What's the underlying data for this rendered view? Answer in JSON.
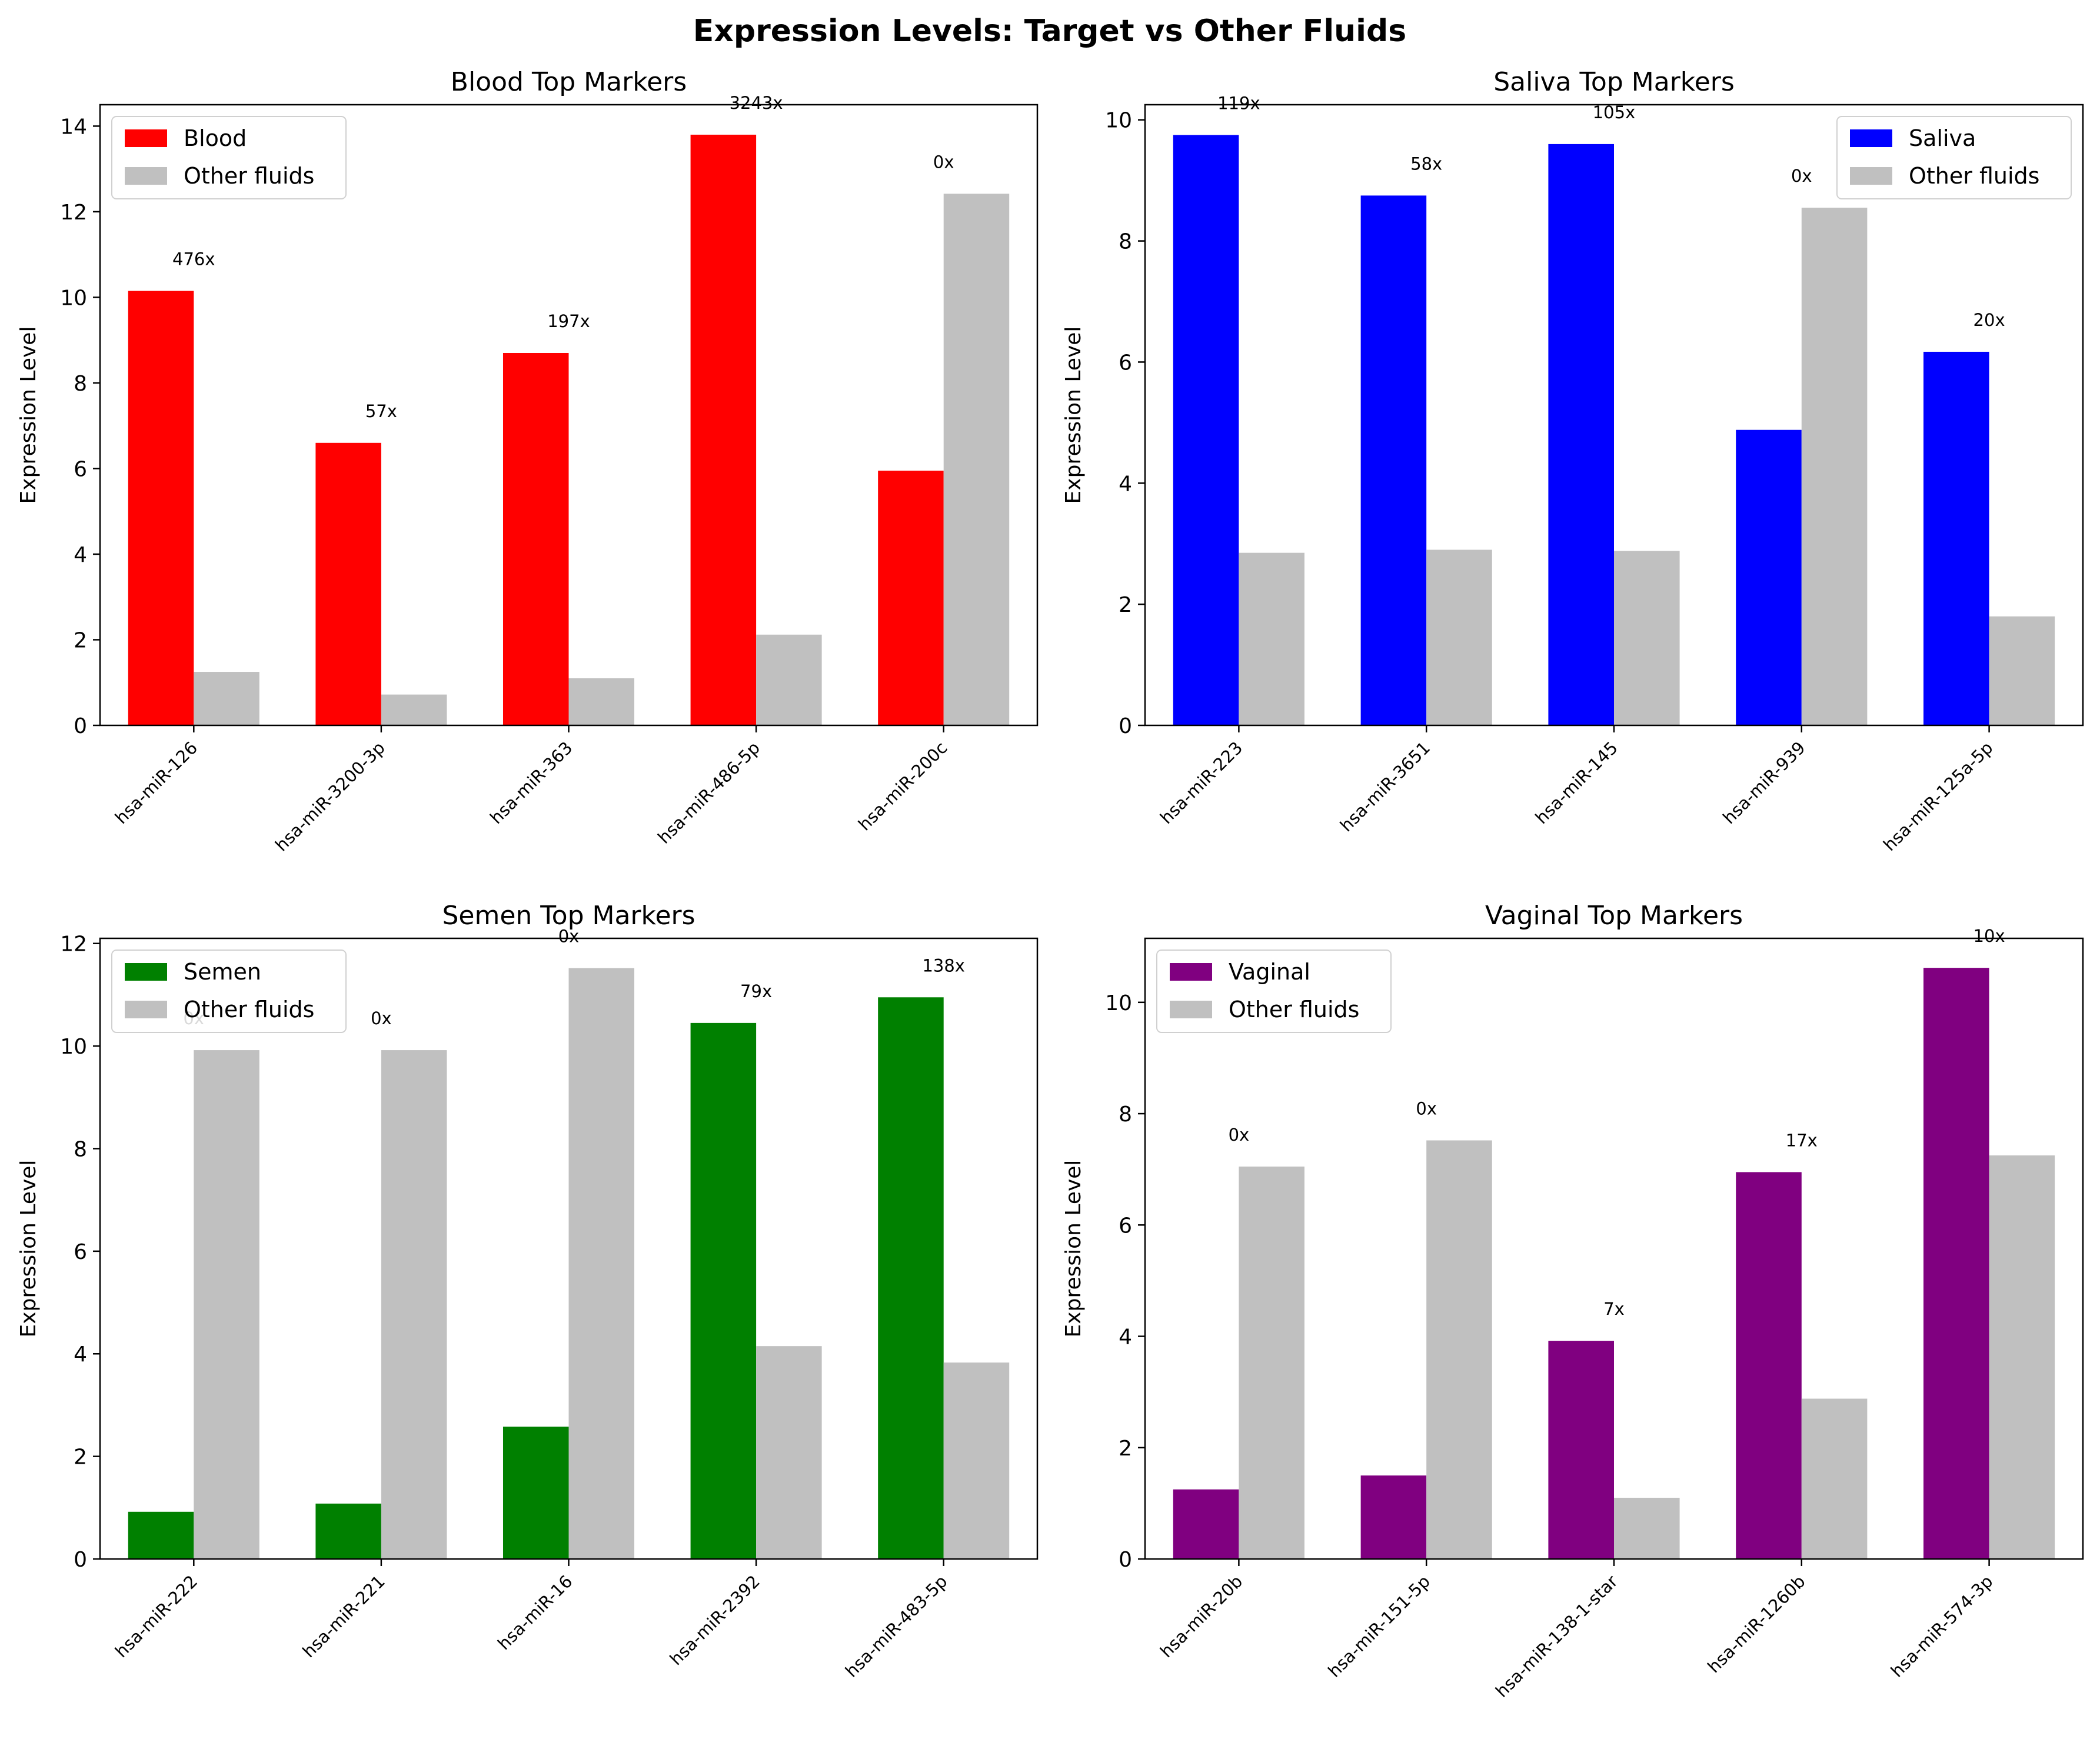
{
  "figure": {
    "title": "Expression Levels: Target vs Other Fluids"
  },
  "chart_data": [
    {
      "type": "bar",
      "title": "Blood Top Markers",
      "xlabel": "",
      "ylabel": "Expression Level",
      "ylim": [
        0,
        14.5
      ],
      "yticks": [
        0,
        2,
        4,
        6,
        8,
        10,
        12,
        14
      ],
      "categories": [
        "hsa-miR-126",
        "hsa-miR-3200-3p",
        "hsa-miR-363",
        "hsa-miR-486-5p",
        "hsa-miR-200c"
      ],
      "series": [
        {
          "name": "Blood",
          "color": "#ff0000",
          "values": [
            10.15,
            6.6,
            8.7,
            13.8,
            5.95
          ]
        },
        {
          "name": "Other fluids",
          "color": "#c0c0c0",
          "values": [
            1.25,
            0.72,
            1.1,
            2.12,
            12.42
          ]
        }
      ],
      "annotations": [
        "476x",
        "57x",
        "197x",
        "3243x",
        "0x"
      ],
      "legend_position": "upper left",
      "grid": false
    },
    {
      "type": "bar",
      "title": "Saliva Top Markers",
      "xlabel": "",
      "ylabel": "Expression Level",
      "ylim": [
        0,
        10.25
      ],
      "yticks": [
        0,
        2,
        4,
        6,
        8,
        10
      ],
      "categories": [
        "hsa-miR-223",
        "hsa-miR-3651",
        "hsa-miR-145",
        "hsa-miR-939",
        "hsa-miR-125a-5p"
      ],
      "series": [
        {
          "name": "Saliva",
          "color": "#0000ff",
          "values": [
            9.75,
            8.75,
            9.6,
            4.88,
            6.17
          ]
        },
        {
          "name": "Other fluids",
          "color": "#c0c0c0",
          "values": [
            2.85,
            2.9,
            2.88,
            8.55,
            1.8
          ]
        }
      ],
      "annotations": [
        "119x",
        "58x",
        "105x",
        "0x",
        "20x"
      ],
      "legend_position": "upper right",
      "grid": false
    },
    {
      "type": "bar",
      "title": "Semen Top Markers",
      "xlabel": "",
      "ylabel": "Expression Level",
      "ylim": [
        0,
        12.1
      ],
      "yticks": [
        0,
        2,
        4,
        6,
        8,
        10,
        12
      ],
      "categories": [
        "hsa-miR-222",
        "hsa-miR-221",
        "hsa-miR-16",
        "hsa-miR-2392",
        "hsa-miR-483-5p"
      ],
      "series": [
        {
          "name": "Semen",
          "color": "#008000",
          "values": [
            0.92,
            1.08,
            2.58,
            10.45,
            10.95
          ]
        },
        {
          "name": "Other fluids",
          "color": "#c0c0c0",
          "values": [
            9.92,
            9.92,
            11.52,
            4.15,
            3.83
          ]
        }
      ],
      "annotations": [
        "0x",
        "0x",
        "0x",
        "79x",
        "138x"
      ],
      "legend_position": "upper left",
      "grid": false
    },
    {
      "type": "bar",
      "title": "Vaginal Top Markers",
      "xlabel": "",
      "ylabel": "Expression Level",
      "ylim": [
        0,
        11.15
      ],
      "yticks": [
        0,
        2,
        4,
        6,
        8,
        10
      ],
      "categories": [
        "hsa-miR-20b",
        "hsa-miR-151-5p",
        "hsa-miR-138-1-star",
        "hsa-miR-1260b",
        "hsa-miR-574-3p"
      ],
      "series": [
        {
          "name": "Vaginal",
          "color": "#800080",
          "values": [
            1.25,
            1.5,
            3.92,
            6.95,
            10.62
          ]
        },
        {
          "name": "Other fluids",
          "color": "#c0c0c0",
          "values": [
            7.05,
            7.52,
            1.1,
            2.88,
            7.25
          ]
        }
      ],
      "annotations": [
        "0x",
        "0x",
        "7x",
        "17x",
        "10x"
      ],
      "legend_position": "upper left",
      "grid": false
    }
  ]
}
